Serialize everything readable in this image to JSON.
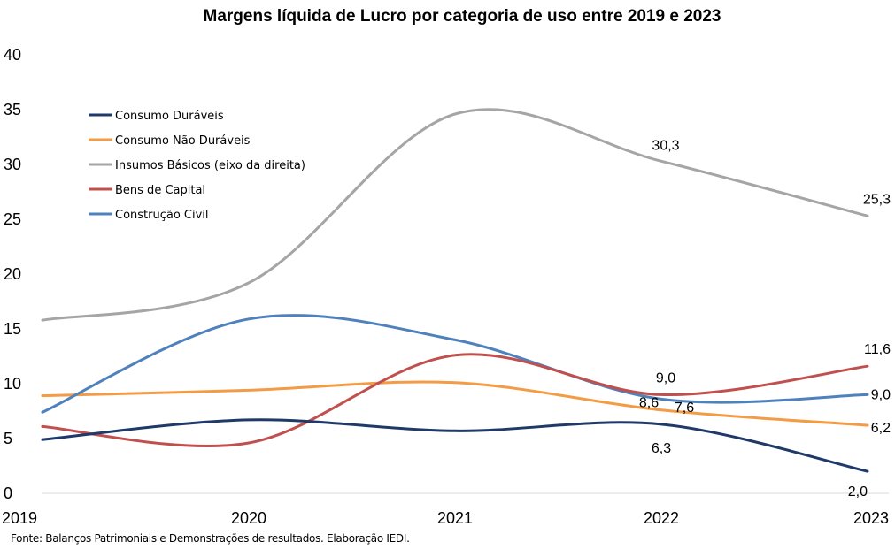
{
  "chart_data": {
    "type": "line",
    "title": "Margens líquida de Lucro por categoria de uso entre 2019 e 2023",
    "source": "Fonte: Balanços Patrimoniais e Demonstrações de resultados. Elaboração IEDI.",
    "x": [
      "2019",
      "2020",
      "2021",
      "2022",
      "2023"
    ],
    "ylim": [
      0,
      40
    ],
    "yticks": [
      "0",
      "5",
      "10",
      "15",
      "20",
      "25",
      "30",
      "35",
      "40"
    ],
    "grid": false,
    "legend_position": "top-left",
    "series": [
      {
        "name": "Consumo Duráveis",
        "color": "#1f3a68",
        "values": [
          4.9,
          6.7,
          5.7,
          6.3,
          2.0
        ],
        "labels": [
          "",
          "",
          "",
          "6,3",
          "2,0"
        ]
      },
      {
        "name": "Consumo Não Duráveis",
        "color": "#f39b45",
        "values": [
          8.9,
          9.4,
          10.1,
          7.6,
          6.2
        ],
        "labels": [
          "",
          "",
          "",
          "7,6",
          "6,2"
        ]
      },
      {
        "name": "Insumos Básicos (eixo da direita)",
        "color": "#a5a5a5",
        "values": [
          15.8,
          19.2,
          34.6,
          30.3,
          25.3
        ],
        "labels": [
          "",
          "",
          "",
          "30,3",
          "25,3"
        ]
      },
      {
        "name": "Bens de Capital",
        "color": "#c0504d",
        "values": [
          6.1,
          4.6,
          12.6,
          9.0,
          11.6
        ],
        "labels": [
          "",
          "",
          "",
          "9,0",
          "11,6"
        ]
      },
      {
        "name": "Construção Civil",
        "color": "#4f81bd",
        "values": [
          7.4,
          15.9,
          14.0,
          8.6,
          9.0
        ],
        "labels": [
          "",
          "",
          "",
          "8,6",
          "9,0"
        ]
      }
    ]
  }
}
